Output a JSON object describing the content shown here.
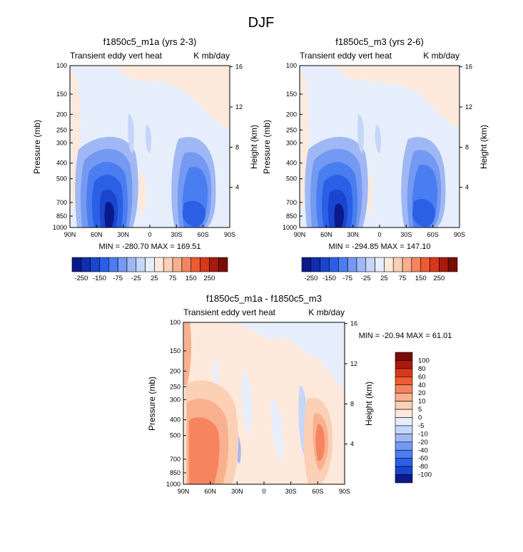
{
  "page_title": "DJF",
  "chart_data": [
    {
      "type": "heatmap",
      "title": "f1850c5_m1a (yrs 2-3)",
      "left_string": "Transient eddy vert heat",
      "right_string": "K mb/day",
      "ylabel": "Pressure (mb)",
      "ylabel_right": "Height (km)",
      "x_ticks": [
        "90N",
        "60N",
        "30N",
        "0",
        "30S",
        "60S",
        "90S"
      ],
      "y_ticks": [
        "100",
        "150",
        "200",
        "250",
        "300",
        "400",
        "500",
        "700",
        "850",
        "1000"
      ],
      "y_ticks_right": [
        "16",
        "12",
        "8",
        "4"
      ],
      "min_max": "MIN = -280.70   MAX = 169.51",
      "colorbar_labels": [
        "-250",
        "-150",
        "-75",
        "-25",
        "25",
        "75",
        "150",
        "250"
      ]
    },
    {
      "type": "heatmap",
      "title": "f1850c5_m3 (yrs 2-6)",
      "left_string": "Transient eddy vert heat",
      "right_string": "K mb/day",
      "ylabel": "Pressure (mb)",
      "ylabel_right": "Height (km)",
      "x_ticks": [
        "90N",
        "60N",
        "30N",
        "0",
        "30S",
        "60S",
        "90S"
      ],
      "y_ticks": [
        "100",
        "150",
        "200",
        "250",
        "300",
        "400",
        "500",
        "700",
        "850",
        "1000"
      ],
      "y_ticks_right": [
        "16",
        "12",
        "8",
        "4"
      ],
      "min_max": "MIN = -294.85   MAX = 147.10",
      "colorbar_labels": [
        "-250",
        "-150",
        "-75",
        "-25",
        "25",
        "75",
        "150",
        "250"
      ]
    },
    {
      "type": "heatmap",
      "title": "f1850c5_m1a - f1850c5_m3",
      "left_string": "Transient eddy vert heat",
      "right_string": "K mb/day",
      "ylabel": "Pressure (mb)",
      "ylabel_right": "Height (km)",
      "x_ticks": [
        "90N",
        "60N",
        "30N",
        "0",
        "30S",
        "60S",
        "90S"
      ],
      "y_ticks": [
        "100",
        "150",
        "200",
        "250",
        "300",
        "400",
        "500",
        "700",
        "850",
        "1000"
      ],
      "y_ticks_right": [
        "16",
        "12",
        "8",
        "4"
      ],
      "min_max": "MIN = -20.94   MAX = 61.01",
      "colorbar_labels": [
        "100",
        "80",
        "60",
        "40",
        "20",
        "10",
        "5",
        "0",
        "-5",
        "-10",
        "-20",
        "-40",
        "-60",
        "-80",
        "-100"
      ]
    }
  ],
  "colors": {
    "levels_top": [
      "#0a1a8a",
      "#0f2fb0",
      "#1a45cf",
      "#2a5fe6",
      "#4a7ef0",
      "#7499f2",
      "#9fb8f5",
      "#c6d6f8",
      "#e6eefc",
      "#fde9dc",
      "#fbd0b5",
      "#f9b08e",
      "#f6855f",
      "#ee5a33",
      "#d8381a",
      "#a81a0c",
      "#7a0c06"
    ],
    "levels_diff": [
      "#7a0c06",
      "#a81a0c",
      "#d8381a",
      "#ee5a33",
      "#f6855f",
      "#f9b08e",
      "#fbd0b5",
      "#fde9dc",
      "#e6eefc",
      "#c6d6f8",
      "#9fb8f5",
      "#7499f2",
      "#4a7ef0",
      "#2a5fe6",
      "#1a45cf",
      "#0a1a8a"
    ]
  }
}
